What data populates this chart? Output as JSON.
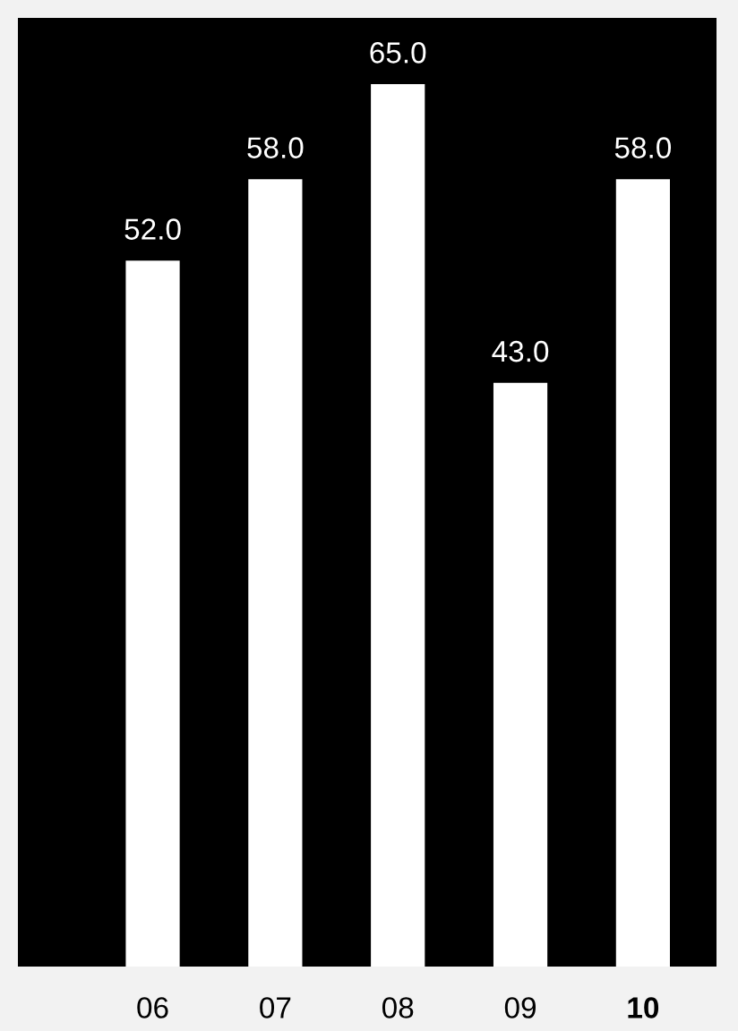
{
  "chart_data": {
    "type": "bar",
    "categories": [
      "06",
      "07",
      "08",
      "09",
      "10"
    ],
    "values": [
      52.0,
      58.0,
      65.0,
      43.0,
      58.0
    ],
    "value_labels": [
      "52.0",
      "58.0",
      "65.0",
      "43.0",
      "58.0"
    ],
    "color": "#ffffff"
  }
}
